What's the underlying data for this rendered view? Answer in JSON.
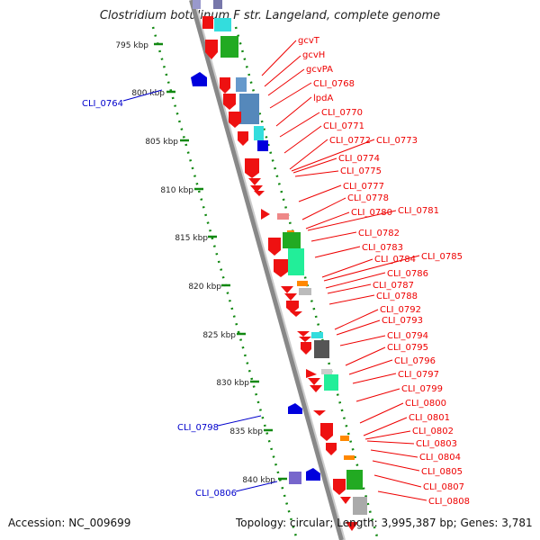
{
  "title": "Clostridium botulinum F str. Langeland, complete genome",
  "footer": {
    "accession": "Accession: NC_009699",
    "summary": "Topology: circular; Length: 3,995,387 bp; Genes: 3,781"
  },
  "colors": {
    "gene_red": "#ee1111",
    "gene_blue": "#0000dd",
    "label_red": "#ee0000",
    "label_blue": "#0000cc",
    "tick_green": "#118811",
    "backbone": "#999999"
  },
  "kbp_ticks": [
    "795 kbp",
    "800 kbp",
    "805 kbp",
    "810 kbp",
    "815 kbp",
    "820 kbp",
    "825 kbp",
    "830 kbp",
    "835 kbp",
    "840 kbp"
  ],
  "right_labels": [
    "gcvT",
    "gcvH",
    "gcvPA",
    "CLI_0768",
    "lpdA",
    "CLI_0770",
    "CLI_0771",
    "CLI_0772",
    "CLI_0773",
    "CLI_0774",
    "CLI_0775",
    "CLI_0777",
    "CLI_0778",
    "CLI_0780",
    "CLI_0781",
    "CLI_0782",
    "CLI_0783",
    "CLI_0784",
    "CLI_0785",
    "CLI_0786",
    "CLI_0787",
    "CLI_0788",
    "CLI_0792",
    "CLI_0793",
    "CLI_0794",
    "CLI_0795",
    "CLI_0796",
    "CLI_0797",
    "CLI_0799",
    "CLI_0800",
    "CLI_0801",
    "CLI_0802",
    "CLI_0803",
    "CLI_0804",
    "CLI_0805",
    "CLI_0807",
    "CLI_0808"
  ],
  "left_labels": [
    "CLI_0764",
    "CLI_0798",
    "CLI_0806"
  ]
}
